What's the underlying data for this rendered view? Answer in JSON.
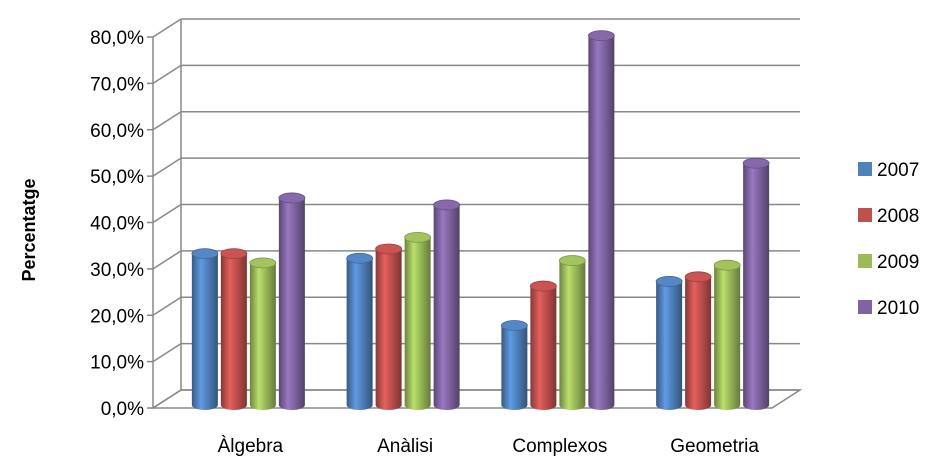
{
  "chart_data": {
    "type": "bar",
    "title": "",
    "xlabel": "",
    "ylabel": "Percentatge",
    "ylim": [
      0,
      80
    ],
    "yticks": [
      "0,0%",
      "10,0%",
      "20,0%",
      "30,0%",
      "40,0%",
      "50,0%",
      "60,0%",
      "70,0%",
      "80,0%"
    ],
    "categories": [
      "Àlgebra",
      "Anàlisi",
      "Complexos",
      "Geometria"
    ],
    "series": [
      {
        "name": "2007",
        "color": "#4F81BD",
        "values": [
          32.0,
          31.0,
          16.5,
          26.0
        ]
      },
      {
        "name": "2008",
        "color": "#C0504D",
        "values": [
          32.0,
          33.0,
          25.0,
          27.0
        ]
      },
      {
        "name": "2009",
        "color": "#9BBB59",
        "values": [
          30.0,
          35.5,
          30.5,
          29.5
        ]
      },
      {
        "name": "2010",
        "color": "#8064A2",
        "values": [
          44.0,
          42.5,
          79.0,
          51.5
        ]
      }
    ],
    "grid": true,
    "legend": "right",
    "style": "3d-cylinder"
  }
}
